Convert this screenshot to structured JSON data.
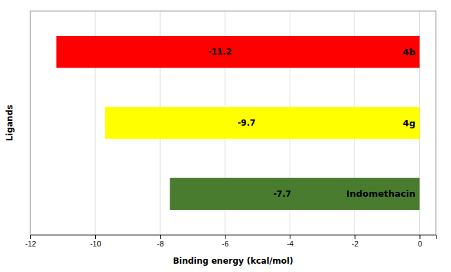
{
  "chart_data": {
    "type": "bar",
    "orientation": "horizontal",
    "categories": [
      "4b",
      "4g",
      "Indomethacin"
    ],
    "values": [
      -11.2,
      -9.7,
      -7.7
    ],
    "colors": [
      "#ff0000",
      "#ffff00",
      "#4a7c2f"
    ],
    "data_labels": true,
    "xlabel": "Binding energy (kcal/mol)",
    "ylabel": "Ligands",
    "xlim": [
      -12,
      0.5
    ],
    "xticks": [
      -12,
      -10,
      -8,
      -6,
      -4,
      -2,
      0
    ],
    "grid": true,
    "tick_labels": "x"
  }
}
